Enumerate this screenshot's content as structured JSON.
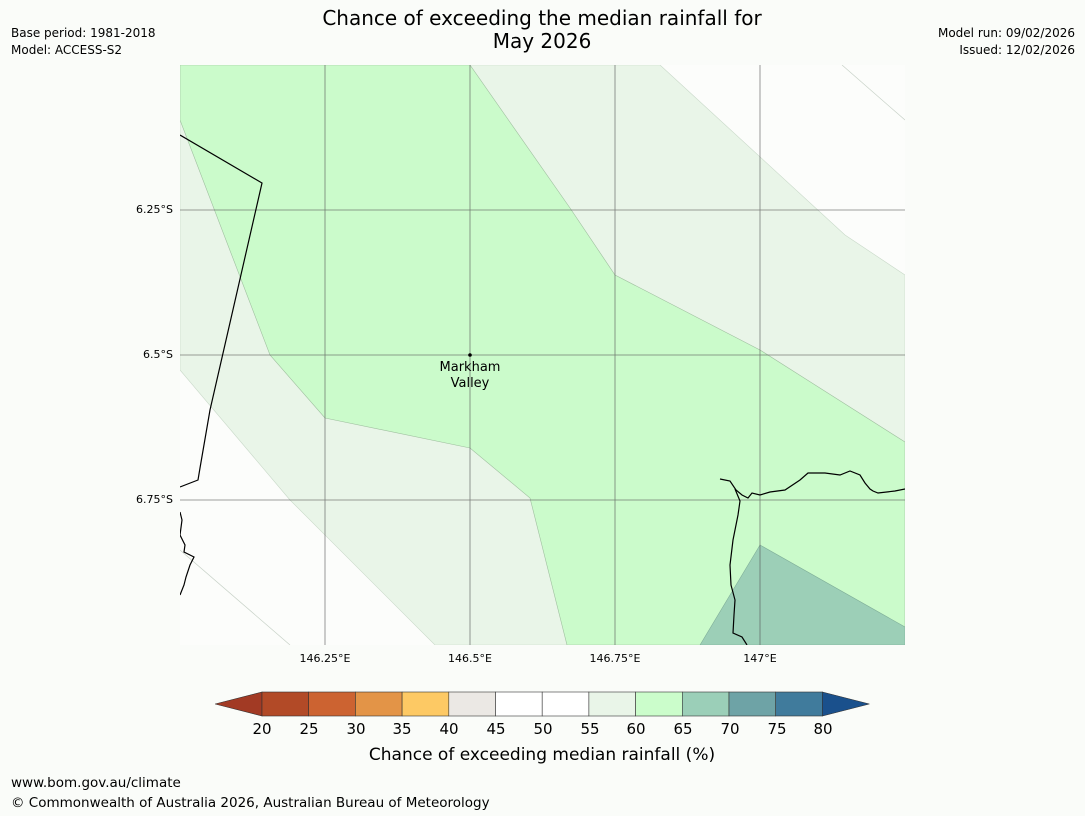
{
  "header": {
    "title_line1": "Chance of exceeding the median rainfall for",
    "title_line2": "May 2026",
    "base_period": "Base period: 1981-2018",
    "model": "Model: ACCESS-S2",
    "model_run": "Model run: 09/02/2026",
    "issued": "Issued: 12/02/2026"
  },
  "map": {
    "lat_labels": [
      "6.25°S",
      "6.5°S",
      "6.75°S"
    ],
    "lon_labels": [
      "146.25°E",
      "146.5°E",
      "146.75°E",
      "147°E"
    ],
    "place": {
      "name_line1": "Markham",
      "name_line2": "Valley"
    },
    "fill_colors": {
      "white": "#fcfdfb",
      "light_green": "#e8f4e8",
      "green": "#cbfbcb",
      "teal": "#9ccfb7"
    }
  },
  "colorbar": {
    "ticks": [
      "20",
      "25",
      "30",
      "35",
      "40",
      "45",
      "50",
      "55",
      "60",
      "65",
      "70",
      "75",
      "80"
    ],
    "colors": [
      "#a23a24",
      "#b24a27",
      "#cc6331",
      "#e39447",
      "#fdc964",
      "#ebe8e4",
      "#ffffff",
      "#ffffff",
      "#e9f5e8",
      "#cbfdcb",
      "#9bcfb8",
      "#6ea3a6",
      "#407b9c",
      "#1a508c"
    ],
    "label": "Chance of exceeding median rainfall (%)"
  },
  "footer": {
    "url": "www.bom.gov.au/climate",
    "copyright": "© Commonwealth of Australia 2026, Australian Bureau of Meteorology"
  }
}
